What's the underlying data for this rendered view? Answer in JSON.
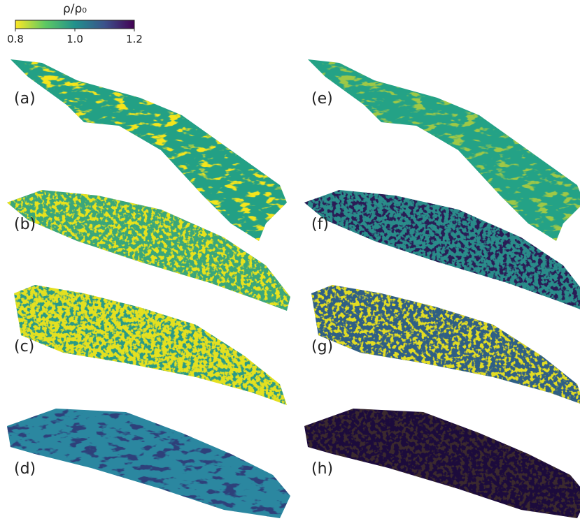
{
  "colorbar": {
    "label": "ρ/ρ₀",
    "lim": [
      0.8,
      1.2
    ],
    "ticks": [
      0.8,
      {
        "value": 1.0,
        "label": "1.0"
      },
      1.2
    ],
    "colormap": [
      "#fde725",
      "#5ec962",
      "#21918c",
      "#3b528b",
      "#440154"
    ]
  },
  "panels": [
    "(a)",
    "(b)",
    "(c)",
    "(d)",
    "(e)",
    "(f)",
    "(g)",
    "(h)"
  ]
}
